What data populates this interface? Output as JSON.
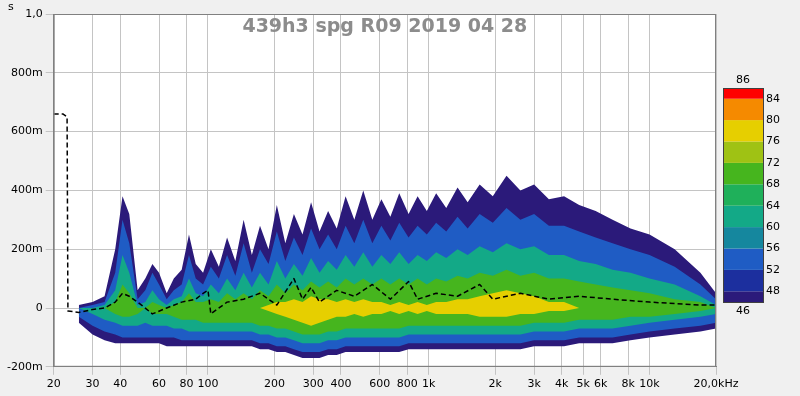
{
  "chart_data": {
    "type": "spectrogram",
    "title": "439h3 spg R09 2019 04 28",
    "y_label": "s",
    "log": "x",
    "grid": true,
    "xlim": [
      20,
      20000
    ],
    "xticks": [
      20,
      30,
      40,
      60,
      80,
      100,
      200,
      300,
      400,
      600,
      800,
      {
        "value": 1000,
        "label": "1k"
      },
      {
        "value": 2000,
        "label": "2k"
      },
      {
        "value": 3000,
        "label": "3k"
      },
      {
        "value": 4000,
        "label": "4k"
      },
      {
        "value": 5000,
        "label": "5k"
      },
      {
        "value": 6000,
        "label": "6k"
      },
      {
        "value": 8000,
        "label": "8k"
      },
      {
        "value": 10000,
        "label": "10k"
      },
      {
        "value": 20000,
        "label": "20,0kHz"
      }
    ],
    "ylim": [
      -0.2,
      1
    ],
    "yticks": [
      {
        "value": -0.2,
        "label": "-200m"
      },
      0,
      {
        "value": 0.2,
        "label": "200m"
      },
      {
        "value": 0.4,
        "label": "400m"
      },
      {
        "value": 0.6,
        "label": "600m"
      },
      {
        "value": 0.8,
        "label": "800m"
      },
      {
        "value": 1,
        "label": "1,0"
      }
    ],
    "x": [
      26,
      30,
      34,
      38,
      41,
      44,
      48,
      52,
      56,
      60,
      65,
      70,
      76,
      82,
      88,
      95,
      103,
      112,
      122,
      133,
      145,
      158,
      172,
      188,
      205,
      224,
      245,
      268,
      293,
      320,
      350,
      383,
      420,
      460,
      505,
      555,
      610,
      670,
      735,
      810,
      890,
      980,
      1080,
      1200,
      1350,
      1500,
      1700,
      1950,
      2250,
      2600,
      3000,
      3500,
      4100,
      4800,
      5700,
      6800,
      8200,
      10000,
      13000,
      17000,
      20000
    ],
    "contours": [
      {
        "level": 46,
        "upper": [
          0.01,
          0.02,
          0.04,
          0.2,
          0.38,
          0.32,
          0.06,
          0.1,
          0.15,
          0.12,
          0.05,
          0.1,
          0.13,
          0.25,
          0.15,
          0.12,
          0.2,
          0.14,
          0.24,
          0.16,
          0.3,
          0.18,
          0.28,
          0.2,
          0.35,
          0.22,
          0.32,
          0.25,
          0.36,
          0.26,
          0.33,
          0.27,
          0.38,
          0.3,
          0.4,
          0.3,
          0.37,
          0.31,
          0.39,
          0.32,
          0.38,
          0.33,
          0.39,
          0.34,
          0.41,
          0.36,
          0.42,
          0.38,
          0.45,
          0.4,
          0.42,
          0.37,
          0.38,
          0.35,
          0.33,
          0.3,
          0.27,
          0.25,
          0.2,
          0.12,
          0.05
        ],
        "lower": [
          -0.05,
          -0.09,
          -0.11,
          -0.12,
          -0.12,
          -0.12,
          -0.12,
          -0.12,
          -0.12,
          -0.12,
          -0.13,
          -0.13,
          -0.13,
          -0.13,
          -0.13,
          -0.13,
          -0.13,
          -0.13,
          -0.13,
          -0.13,
          -0.13,
          -0.13,
          -0.14,
          -0.14,
          -0.15,
          -0.15,
          -0.16,
          -0.17,
          -0.17,
          -0.17,
          -0.16,
          -0.16,
          -0.15,
          -0.15,
          -0.15,
          -0.15,
          -0.15,
          -0.15,
          -0.15,
          -0.14,
          -0.14,
          -0.14,
          -0.14,
          -0.14,
          -0.14,
          -0.14,
          -0.14,
          -0.14,
          -0.14,
          -0.14,
          -0.13,
          -0.13,
          -0.13,
          -0.12,
          -0.12,
          -0.12,
          -0.11,
          -0.1,
          -0.09,
          -0.08,
          -0.07
        ]
      },
      {
        "level": 52,
        "upper": [
          0,
          0.01,
          0.02,
          0.12,
          0.3,
          0.22,
          0.03,
          0.06,
          0.12,
          0.08,
          0.03,
          0.06,
          0.08,
          0.18,
          0.1,
          0.08,
          0.14,
          0.1,
          0.18,
          0.11,
          0.22,
          0.12,
          0.2,
          0.15,
          0.26,
          0.16,
          0.24,
          0.18,
          0.27,
          0.2,
          0.25,
          0.2,
          0.28,
          0.22,
          0.3,
          0.22,
          0.28,
          0.23,
          0.29,
          0.24,
          0.28,
          0.25,
          0.29,
          0.26,
          0.31,
          0.27,
          0.32,
          0.29,
          0.34,
          0.3,
          0.32,
          0.28,
          0.28,
          0.26,
          0.24,
          0.22,
          0.2,
          0.18,
          0.14,
          0.08,
          0.03
        ],
        "lower": [
          -0.03,
          -0.06,
          -0.08,
          -0.09,
          -0.1,
          -0.1,
          -0.1,
          -0.1,
          -0.1,
          -0.1,
          -0.1,
          -0.1,
          -0.11,
          -0.11,
          -0.11,
          -0.11,
          -0.11,
          -0.11,
          -0.11,
          -0.11,
          -0.11,
          -0.11,
          -0.12,
          -0.12,
          -0.13,
          -0.13,
          -0.14,
          -0.15,
          -0.15,
          -0.15,
          -0.14,
          -0.14,
          -0.13,
          -0.13,
          -0.13,
          -0.13,
          -0.13,
          -0.13,
          -0.13,
          -0.12,
          -0.12,
          -0.12,
          -0.12,
          -0.12,
          -0.12,
          -0.12,
          -0.12,
          -0.12,
          -0.12,
          -0.12,
          -0.11,
          -0.11,
          -0.11,
          -0.1,
          -0.1,
          -0.1,
          -0.09,
          -0.08,
          -0.07,
          -0.06,
          -0.05
        ]
      },
      {
        "level": 60,
        "upper": [
          0,
          0,
          0.01,
          0.06,
          0.18,
          0.12,
          0.01,
          0.02,
          0.06,
          0.03,
          0.01,
          0.03,
          0.04,
          0.1,
          0.05,
          0.04,
          0.08,
          0.05,
          0.1,
          0.06,
          0.12,
          0.07,
          0.12,
          0.08,
          0.16,
          0.1,
          0.15,
          0.11,
          0.17,
          0.12,
          0.16,
          0.13,
          0.18,
          0.14,
          0.19,
          0.14,
          0.18,
          0.15,
          0.19,
          0.15,
          0.18,
          0.16,
          0.19,
          0.17,
          0.2,
          0.18,
          0.21,
          0.19,
          0.22,
          0.2,
          0.21,
          0.18,
          0.18,
          0.16,
          0.15,
          0.13,
          0.12,
          0.1,
          0.08,
          0.04,
          0.01
        ],
        "lower": [
          0,
          -0.02,
          -0.04,
          -0.05,
          -0.06,
          -0.06,
          -0.06,
          -0.05,
          -0.06,
          -0.06,
          -0.06,
          -0.07,
          -0.07,
          -0.08,
          -0.08,
          -0.08,
          -0.08,
          -0.08,
          -0.08,
          -0.08,
          -0.08,
          -0.08,
          -0.09,
          -0.09,
          -0.1,
          -0.1,
          -0.11,
          -0.12,
          -0.12,
          -0.12,
          -0.11,
          -0.11,
          -0.1,
          -0.1,
          -0.1,
          -0.1,
          -0.1,
          -0.1,
          -0.1,
          -0.09,
          -0.09,
          -0.09,
          -0.09,
          -0.09,
          -0.09,
          -0.09,
          -0.09,
          -0.09,
          -0.09,
          -0.09,
          -0.08,
          -0.08,
          -0.08,
          -0.07,
          -0.07,
          -0.07,
          -0.06,
          -0.05,
          -0.04,
          -0.03,
          -0.02
        ]
      },
      {
        "level": 68,
        "upper": [
          0,
          0,
          0,
          0.02,
          0.08,
          0.05,
          0,
          0,
          0.02,
          0.01,
          0,
          0.01,
          0.02,
          0.05,
          0.02,
          0.02,
          0.03,
          0.02,
          0.05,
          0.03,
          0.05,
          0.03,
          0.06,
          0.04,
          0.08,
          0.05,
          0.08,
          0.06,
          0.09,
          0.07,
          0.09,
          0.07,
          0.1,
          0.08,
          0.1,
          0.08,
          0.1,
          0.08,
          0.1,
          0.08,
          0.1,
          0.08,
          0.1,
          0.09,
          0.11,
          0.1,
          0.12,
          0.11,
          0.13,
          0.11,
          0.12,
          0.1,
          0.1,
          0.09,
          0.08,
          0.07,
          0.06,
          0.05,
          0.03,
          0.02,
          0
        ],
        "lower": [
          0,
          0,
          0,
          -0.02,
          -0.03,
          -0.03,
          -0.02,
          0,
          -0.02,
          -0.02,
          -0.02,
          -0.03,
          -0.04,
          -0.04,
          -0.04,
          -0.05,
          -0.05,
          -0.05,
          -0.05,
          -0.05,
          -0.05,
          -0.05,
          -0.06,
          -0.06,
          -0.07,
          -0.07,
          -0.08,
          -0.09,
          -0.09,
          -0.09,
          -0.08,
          -0.08,
          -0.07,
          -0.07,
          -0.07,
          -0.07,
          -0.07,
          -0.07,
          -0.07,
          -0.06,
          -0.06,
          -0.06,
          -0.06,
          -0.06,
          -0.06,
          -0.06,
          -0.06,
          -0.06,
          -0.06,
          -0.06,
          -0.05,
          -0.05,
          -0.05,
          -0.04,
          -0.04,
          -0.04,
          -0.03,
          -0.03,
          -0.02,
          -0.01,
          0
        ]
      },
      {
        "level": 76,
        "upper": [
          0,
          0,
          0,
          0,
          0,
          0,
          0,
          0,
          0,
          0,
          0,
          0,
          0,
          0,
          0,
          0,
          0,
          0,
          0,
          0,
          0,
          0,
          0,
          0.01,
          0.02,
          0.02,
          0.03,
          0.02,
          0.04,
          0.03,
          0.03,
          0.02,
          0.03,
          0.02,
          0.03,
          0.02,
          0.02,
          0.01,
          0.02,
          0.01,
          0.02,
          0.01,
          0.02,
          0.02,
          0.03,
          0.03,
          0.04,
          0.05,
          0.06,
          0.05,
          0.04,
          0.02,
          0.02,
          0,
          0,
          0,
          0,
          0,
          0,
          0,
          0
        ],
        "lower": [
          0,
          0,
          0,
          0,
          0,
          0,
          0,
          0,
          0,
          0,
          0,
          0,
          0,
          0,
          0,
          0,
          0,
          0,
          0,
          0,
          0,
          0,
          0,
          -0.01,
          -0.02,
          -0.03,
          -0.04,
          -0.05,
          -0.06,
          -0.05,
          -0.04,
          -0.03,
          -0.03,
          -0.02,
          -0.03,
          -0.02,
          -0.02,
          -0.01,
          -0.02,
          -0.01,
          -0.02,
          -0.01,
          -0.02,
          -0.02,
          -0.02,
          -0.02,
          -0.03,
          -0.03,
          -0.03,
          -0.02,
          -0.02,
          -0.01,
          -0.01,
          0,
          0,
          0,
          0,
          0,
          0,
          0,
          0
        ]
      }
    ],
    "colorbar": {
      "range": [
        46,
        86
      ],
      "ticks": [
        46,
        48,
        52,
        56,
        60,
        64,
        68,
        72,
        76,
        80,
        84,
        86
      ],
      "colors": [
        "#2b1a7a",
        "#1c2f9e",
        "#1f5cc4",
        "#15879e",
        "#13a987",
        "#1fb05a",
        "#46b51e",
        "#9fc214",
        "#e6cf00",
        "#f58a00",
        "#ff0000"
      ]
    },
    "peak": {
      "color": "#000000",
      "line_style": "dashed",
      "x": [
        20,
        22,
        23,
        23.2,
        26,
        30,
        34,
        38,
        41,
        44,
        50,
        56,
        65,
        76,
        88,
        95,
        100,
        103,
        122,
        145,
        172,
        205,
        245,
        268,
        293,
        320,
        383,
        460,
        555,
        670,
        810,
        890,
        1080,
        1350,
        1700,
        1950,
        2600,
        3500,
        4800,
        6800,
        10000,
        17000,
        20000
      ],
      "values": [
        0.66,
        0.66,
        0.65,
        -0.01,
        -0.015,
        -0.005,
        0,
        0.02,
        0.05,
        0.04,
        0.01,
        -0.02,
        0,
        0.02,
        0.03,
        0.05,
        0.06,
        -0.02,
        0.02,
        0.03,
        0.05,
        0.01,
        0.1,
        0.03,
        0.07,
        0.02,
        0.06,
        0.04,
        0.08,
        0.03,
        0.09,
        0.03,
        0.05,
        0.04,
        0.08,
        0.03,
        0.05,
        0.03,
        0.04,
        0.03,
        0.02,
        0.01,
        0.01
      ]
    }
  }
}
